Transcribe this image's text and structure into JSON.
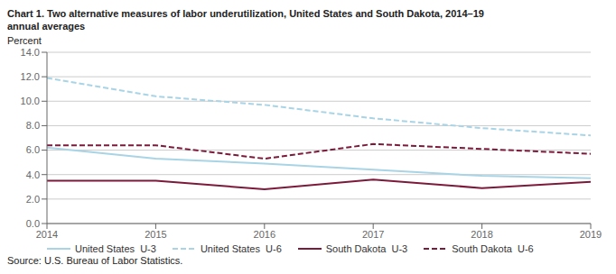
{
  "chart_data": {
    "type": "line",
    "title": "Chart 1. Two alternative measures of labor underutilization, United States and South Dakota, 2014–19",
    "subtitle": "annual averages",
    "ylabel": "Percent",
    "annotations": [
      "Source: U.S. Bureau of Labor Statistics."
    ],
    "x": [
      2014,
      2015,
      2016,
      2017,
      2018,
      2019
    ],
    "xlim": [
      2014,
      2019
    ],
    "xticks": [
      2014,
      2015,
      2016,
      2017,
      2018,
      2019
    ],
    "ylim": [
      0,
      14.0
    ],
    "yticks": [
      {
        "value": 0.0,
        "label": "0.0"
      },
      {
        "value": 2.0,
        "label": "2.0"
      },
      {
        "value": 4.0,
        "label": "4.0"
      },
      {
        "value": 6.0,
        "label": "6.0"
      },
      {
        "value": 8.0,
        "label": "8.0"
      },
      {
        "value": 10.0,
        "label": "10.0"
      },
      {
        "value": 12.0,
        "label": "12.0"
      },
      {
        "value": 14.0,
        "label": "14.0"
      }
    ],
    "grid": true,
    "legend": "lower left",
    "series": [
      {
        "name": "United States  U-3",
        "color": "#a8d4e6",
        "line_style": "solid",
        "values": [
          6.2,
          5.3,
          4.9,
          4.4,
          3.9,
          3.7
        ]
      },
      {
        "name": "United States  U-6",
        "color": "#a8d4e6",
        "line_style": "dashed",
        "values": [
          11.9,
          10.4,
          9.7,
          8.6,
          7.8,
          7.2
        ]
      },
      {
        "name": "South Dakota  U-3",
        "color": "#7b1a3a",
        "line_style": "solid",
        "values": [
          3.5,
          3.5,
          2.8,
          3.6,
          2.9,
          3.4
        ]
      },
      {
        "name": "South Dakota  U-6",
        "color": "#7b1a3a",
        "line_style": "dashed",
        "values": [
          6.4,
          6.4,
          5.3,
          6.5,
          6.1,
          5.7
        ]
      }
    ]
  }
}
